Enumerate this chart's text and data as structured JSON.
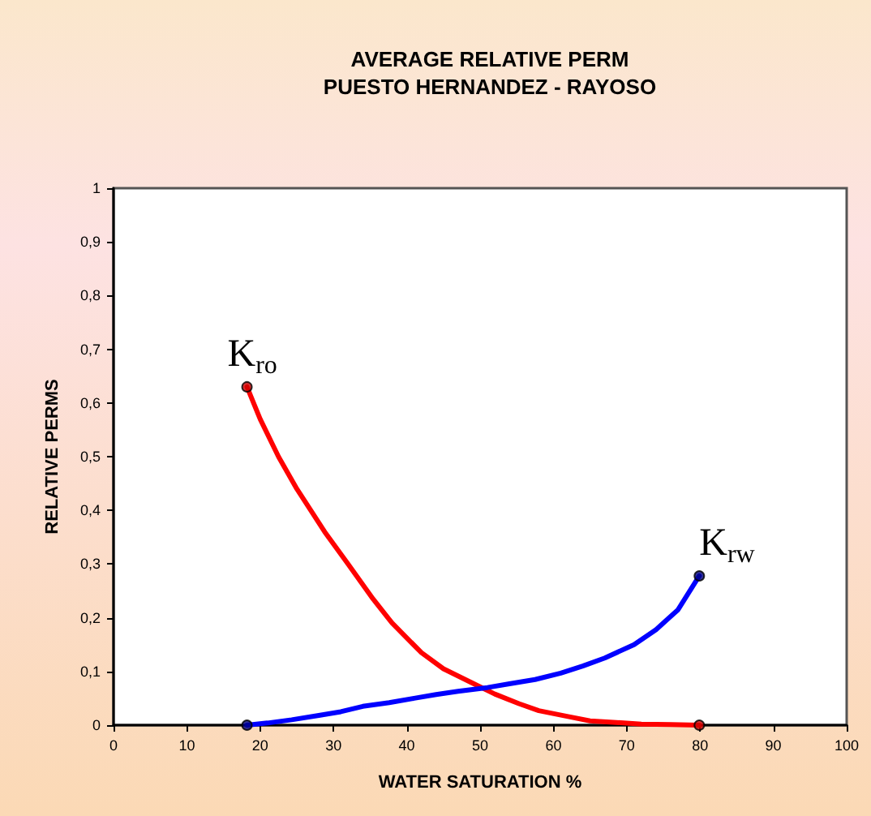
{
  "chart_data": {
    "type": "line",
    "title": "AVERAGE RELATIVE PERM",
    "subtitle": "PUESTO HERNANDEZ - RAYOSO",
    "xlabel": "WATER SATURATION %",
    "ylabel": "RELATIVE PERMS",
    "xlim": [
      0,
      100
    ],
    "xticks": [
      0,
      10,
      20,
      30,
      40,
      50,
      60,
      70,
      80,
      90,
      100
    ],
    "ylim": [
      0,
      1
    ],
    "yticks": [
      0,
      {
        "value": 0.1,
        "label": "0,1"
      },
      {
        "value": 0.2,
        "label": "0,2"
      },
      {
        "value": 0.3,
        "label": "0,3"
      },
      {
        "value": 0.4,
        "label": "0,4"
      },
      {
        "value": 0.5,
        "label": "0,5"
      },
      {
        "value": 0.6,
        "label": "0,6"
      },
      {
        "value": 0.7,
        "label": "0,7"
      },
      {
        "value": 0.8,
        "label": "0,8"
      },
      {
        "value": 0.9,
        "label": "0,9"
      },
      1
    ],
    "grid": false,
    "line_style": "solid",
    "series": [
      {
        "marker": "none",
        "color": "#ff0000",
        "x": [
          18.2,
          20,
          22.5,
          25,
          28.8,
          32,
          35.4,
          38,
          42,
          45,
          48.7,
          52,
          55.3,
          58,
          62,
          65,
          68.6,
          72,
          76,
          79.9
        ],
        "values": [
          0.63,
          0.57,
          0.5,
          0.44,
          0.36,
          0.3,
          0.235,
          0.19,
          0.135,
          0.105,
          0.08,
          0.058,
          0.04,
          0.027,
          0.016,
          0.008,
          0.005,
          0.002,
          0.001,
          0
        ]
      },
      {
        "marker": "none",
        "color": "#0000ff",
        "x": [
          18.2,
          21,
          24.3,
          28,
          31,
          34,
          37.6,
          41,
          44,
          47,
          51,
          54,
          57.5,
          61,
          64,
          67,
          71,
          74,
          77,
          79.9
        ],
        "values": [
          0,
          0.004,
          0.01,
          0.018,
          0.025,
          0.035,
          0.042,
          0.05,
          0.057,
          0.063,
          0.07,
          0.077,
          0.085,
          0.097,
          0.11,
          0.125,
          0.15,
          0.178,
          0.215,
          0.278
        ]
      },
      {
        "type": "scatter",
        "marker": "circle",
        "color": "#cc0000",
        "x": [
          18.2,
          79.9
        ],
        "values": [
          0.63,
          0
        ]
      },
      {
        "type": "scatter",
        "marker": "circle",
        "color": "#000080",
        "x": [
          18.2,
          79.9
        ],
        "values": [
          0,
          0.278
        ]
      }
    ],
    "annotations": [
      {
        "text": "K$_{ro}$",
        "x": 18.2,
        "y": 0.63
      },
      {
        "text": "K$_{rw}$",
        "x": 79.9,
        "y": 0.278
      }
    ]
  }
}
